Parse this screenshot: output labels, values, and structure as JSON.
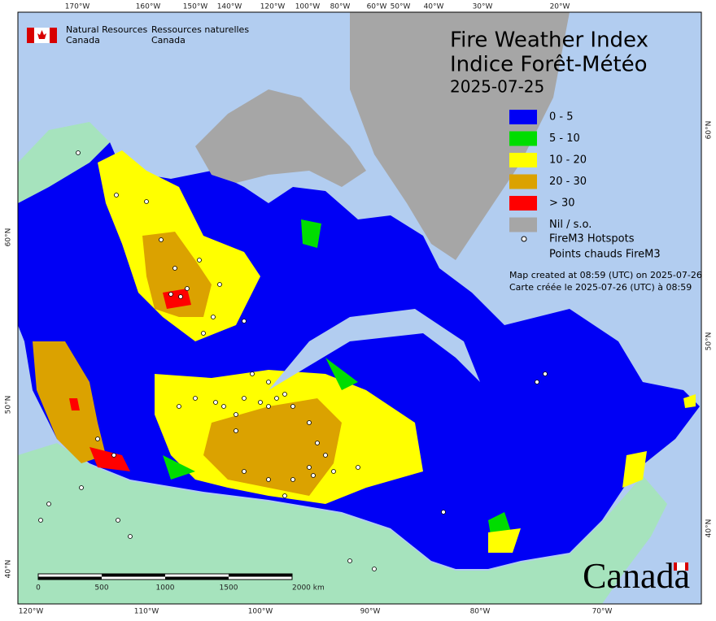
{
  "header": {
    "agency_en": [
      "Natural Resources",
      "Canada"
    ],
    "agency_fr": [
      "Ressources naturelles",
      "Canada"
    ],
    "title": [
      "Fire Weather Index",
      "Indice Forêt-Météo"
    ],
    "date": "2025-07-25"
  },
  "legend": {
    "items": [
      "0 - 5",
      "5 - 10",
      "10 - 20",
      "20 - 30",
      "> 30",
      "Nil / s.o."
    ],
    "hotspots": [
      "FireM3 Hotspots",
      "Points chauds FireM3"
    ]
  },
  "notes": [
    "Map created at 08:59 (UTC) on 2025-07-26",
    "Carte créée le 2025-07-26 (UTC) à 08:59"
  ],
  "graticule": {
    "top": [
      "170°W",
      "160°W",
      "150°W",
      "140°W",
      "120°W",
      "100°W",
      "80°W",
      "60°W",
      "50°W",
      "40°W",
      "30°W",
      "20°W"
    ],
    "bottom": [
      "120°W",
      "110°W",
      "100°W",
      "90°W",
      "80°W",
      "70°W"
    ],
    "left": [
      "60°N",
      "50°N",
      "40°N"
    ],
    "right": [
      "60°N",
      "50°N",
      "40°N"
    ]
  },
  "scale_bar": {
    "labels": [
      "0",
      "500",
      "1000",
      "1500",
      "2000  km"
    ]
  },
  "wordmark": "Canada"
}
